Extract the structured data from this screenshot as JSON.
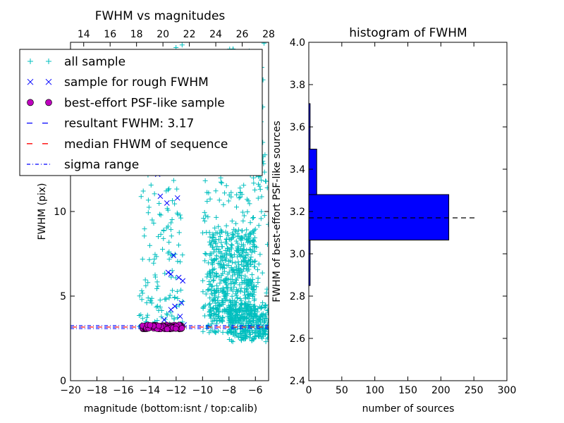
{
  "chart_data": [
    {
      "type": "scatter",
      "title": "FWHM vs magnitudes",
      "xlabel": "magnitude (bottom:isnt / top:calib)",
      "ylabel": "FWHM (pix)",
      "xlim": [
        -20,
        -5
      ],
      "ylim": [
        0,
        20
      ],
      "x_ticks": [
        "−20",
        "−18",
        "−16",
        "−14",
        "−12",
        "−10",
        "−8",
        "−6"
      ],
      "x_tick_values": [
        -20,
        -18,
        -16,
        -14,
        -12,
        -10,
        -8,
        -6
      ],
      "y_ticks": [
        "0",
        "5",
        "10"
      ],
      "y_tick_values": [
        0,
        5,
        10
      ],
      "top_axis": {
        "lim": [
          13,
          28
        ],
        "ticks": [
          "14",
          "16",
          "18",
          "20",
          "22",
          "24",
          "26",
          "28"
        ],
        "tick_values": [
          14,
          16,
          18,
          20,
          22,
          24,
          26,
          28
        ]
      },
      "legend": {
        "location": "upper-left",
        "entries": [
          {
            "label": "all sample",
            "marker": "+",
            "color": "#00bfbf"
          },
          {
            "label": "sample for rough FWHM",
            "marker": "x",
            "color": "#0000ff"
          },
          {
            "label": "best-effort PSF-like sample",
            "marker": "o",
            "color": "#bf00bf"
          },
          {
            "label": "resultant FWHM: 3.17",
            "marker": "dashed",
            "color": "#0000ff"
          },
          {
            "label": "median FHWM of sequence",
            "marker": "dashed",
            "color": "#ff0000"
          },
          {
            "label": "sigma range",
            "marker": "dashdot",
            "color": "#0000ff"
          }
        ]
      },
      "series": [
        {
          "name": "all sample",
          "marker": "+",
          "color": "#00bfbf",
          "clusters": [
            {
              "x_range": [
                -14.8,
                -11.5
              ],
              "y_range": [
                3.2,
                20
              ],
              "count": 200
            },
            {
              "x_range": [
                -10,
                -5
              ],
              "y_range": [
                2.8,
                20
              ],
              "count": 320
            },
            {
              "x_range": [
                -9.5,
                -6
              ],
              "y_range": [
                3.5,
                9
              ],
              "count": 500
            },
            {
              "x_range": [
                -8,
                -5
              ],
              "y_range": [
                2.3,
                4.5
              ],
              "count": 260
            }
          ]
        },
        {
          "name": "sample for rough FWHM",
          "marker": "x",
          "color": "#0000ff",
          "points": [
            [
              -13.4,
              12.2
            ],
            [
              -12.3,
              12.5
            ],
            [
              -13.2,
              10.9
            ],
            [
              -11.9,
              10.8
            ],
            [
              -12.7,
              10.5
            ],
            [
              -12.2,
              7.4
            ],
            [
              -12.6,
              6.4
            ],
            [
              -12.4,
              6.3
            ],
            [
              -11.5,
              5.9
            ],
            [
              -11.8,
              6.1
            ],
            [
              -12.1,
              4.4
            ],
            [
              -12.4,
              4.2
            ],
            [
              -11.6,
              4.6
            ],
            [
              -11.7,
              3.8
            ],
            [
              -12.9,
              3.6
            ],
            [
              -13.6,
              3.2
            ],
            [
              -14.2,
              3.3
            ],
            [
              -11.4,
              3.3
            ]
          ]
        },
        {
          "name": "best-effort PSF-like sample",
          "marker": "o",
          "color": "#bf00bf",
          "x_range": [
            -14.6,
            -11.5
          ],
          "y_range": [
            3.05,
            3.3
          ],
          "count": 130
        }
      ],
      "lines": [
        {
          "name": "resultant FWHM: 3.17",
          "y": 3.17,
          "style": "dashed",
          "color": "#0000ff"
        },
        {
          "name": "median FHWM of sequence",
          "y": 3.17,
          "style": "dashed",
          "color": "#ff0000"
        },
        {
          "name": "sigma range",
          "y": [
            3.08,
            3.26
          ],
          "style": "dashdot",
          "color": "#0000ff"
        }
      ]
    },
    {
      "type": "bar",
      "orientation": "horizontal",
      "title": "histogram of FWHM",
      "xlabel": "number of sources",
      "ylabel": "FWHM of best-effort PSF-like sources",
      "xlim": [
        0,
        300
      ],
      "ylim": [
        2.4,
        4.0
      ],
      "x_ticks": [
        "0",
        "50",
        "100",
        "150",
        "200",
        "250",
        "300"
      ],
      "x_tick_values": [
        0,
        50,
        100,
        150,
        200,
        250,
        300
      ],
      "y_ticks": [
        "2.4",
        "2.6",
        "2.8",
        "3.0",
        "3.2",
        "3.4",
        "3.6",
        "3.8",
        "4.0"
      ],
      "y_tick_values": [
        2.4,
        2.6,
        2.8,
        3.0,
        3.2,
        3.4,
        3.6,
        3.8,
        4.0
      ],
      "bar_color": "#0000ff",
      "bins": [
        {
          "y0": 2.85,
          "y1": 3.065,
          "count": 2
        },
        {
          "y0": 3.065,
          "y1": 3.28,
          "count": 212
        },
        {
          "y0": 3.28,
          "y1": 3.495,
          "count": 12
        },
        {
          "y0": 3.495,
          "y1": 3.71,
          "count": 2
        }
      ],
      "median_line": {
        "y": 3.17,
        "x_range": [
          0,
          255
        ],
        "style": "dashed",
        "color": "#000000"
      }
    }
  ]
}
